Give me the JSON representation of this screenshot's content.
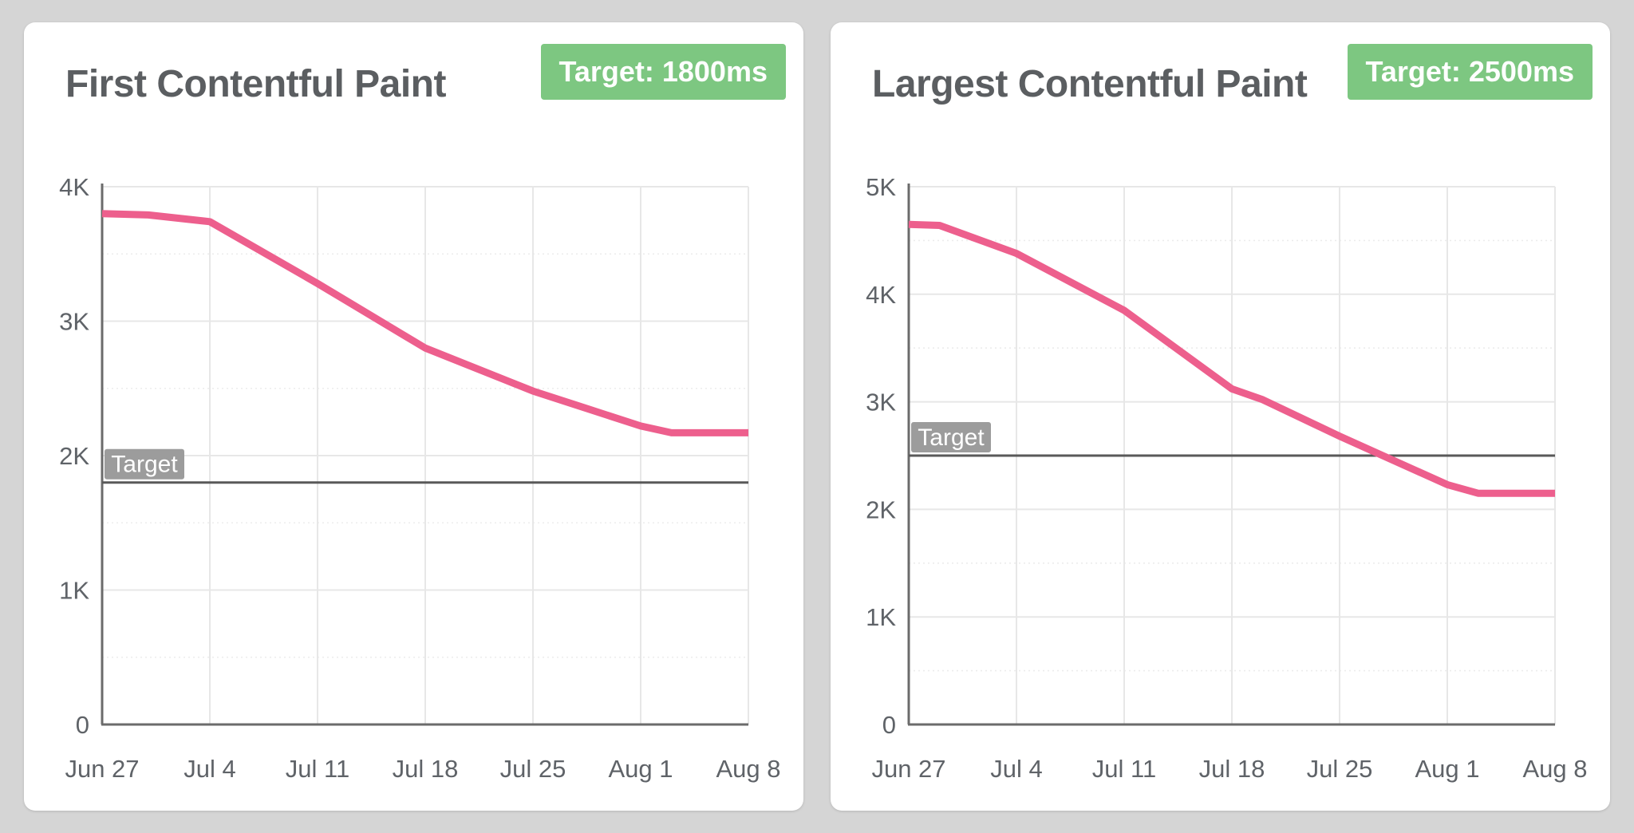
{
  "page": {
    "kind": "web-vitals-dashboard",
    "units": "ms"
  },
  "colors": {
    "page_bg": "#d5d5d5",
    "card_bg": "#ffffff",
    "title_text": "#5b5e61",
    "tick_text": "#5f6368",
    "badge_bg": "#7dc781",
    "badge_text": "#ffffff",
    "target_chip_bg": "#9c9c9c",
    "target_chip_text": "#ffffff",
    "axis": "#6b6b6b",
    "target_line": "#595959",
    "grid_major": "#e7e7e7",
    "grid_minor": "#ececec",
    "series_line": "#ed5f8d"
  },
  "chart_data": [
    {
      "type": "line",
      "title": "First Contentful Paint",
      "badge": "Target: 1800ms",
      "target": {
        "label": "Target",
        "value_ms": 1800
      },
      "x_tick_labels": [
        "Jun 27",
        "Jul 4",
        "Jul 11",
        "Jul 18",
        "Jul 25",
        "Aug 1",
        "Aug 8"
      ],
      "x_span_days": 42,
      "ylim": [
        0,
        4000
      ],
      "y_ticks": [
        {
          "label": "4K",
          "value": 4000
        },
        {
          "label": "3K",
          "value": 3000
        },
        {
          "label": "2K",
          "value": 2000
        },
        {
          "label": "1K",
          "value": 1000
        },
        {
          "label": "0",
          "value": 0
        }
      ],
      "grid": true,
      "legend": "none",
      "series": [
        {
          "name": "first-contentful-paint-ms",
          "color": "#ed5f8d",
          "points": [
            {
              "day": 0,
              "ms": 3800
            },
            {
              "day": 3,
              "ms": 3790
            },
            {
              "day": 7,
              "ms": 3740
            },
            {
              "day": 14,
              "ms": 3280
            },
            {
              "day": 21,
              "ms": 2800
            },
            {
              "day": 28,
              "ms": 2480
            },
            {
              "day": 35,
              "ms": 2220
            },
            {
              "day": 37,
              "ms": 2170
            },
            {
              "day": 42,
              "ms": 2170
            }
          ]
        }
      ]
    },
    {
      "type": "line",
      "title": "Largest Contentful Paint",
      "badge": "Target: 2500ms",
      "target": {
        "label": "Target",
        "value_ms": 2500
      },
      "x_tick_labels": [
        "Jun 27",
        "Jul 4",
        "Jul 11",
        "Jul 18",
        "Jul 25",
        "Aug 1",
        "Aug 8"
      ],
      "x_span_days": 42,
      "ylim": [
        0,
        5000
      ],
      "y_ticks": [
        {
          "label": "5K",
          "value": 5000
        },
        {
          "label": "4K",
          "value": 4000
        },
        {
          "label": "3K",
          "value": 3000
        },
        {
          "label": "2K",
          "value": 2000
        },
        {
          "label": "1K",
          "value": 1000
        },
        {
          "label": "0",
          "value": 0
        }
      ],
      "grid": true,
      "legend": "none",
      "series": [
        {
          "name": "largest-contentful-paint-ms",
          "color": "#ed5f8d",
          "points": [
            {
              "day": 0,
              "ms": 4650
            },
            {
              "day": 2,
              "ms": 4640
            },
            {
              "day": 7,
              "ms": 4380
            },
            {
              "day": 14,
              "ms": 3850
            },
            {
              "day": 21,
              "ms": 3120
            },
            {
              "day": 23,
              "ms": 3020
            },
            {
              "day": 28,
              "ms": 2680
            },
            {
              "day": 35,
              "ms": 2230
            },
            {
              "day": 37,
              "ms": 2150
            },
            {
              "day": 42,
              "ms": 2150
            }
          ]
        }
      ]
    }
  ]
}
